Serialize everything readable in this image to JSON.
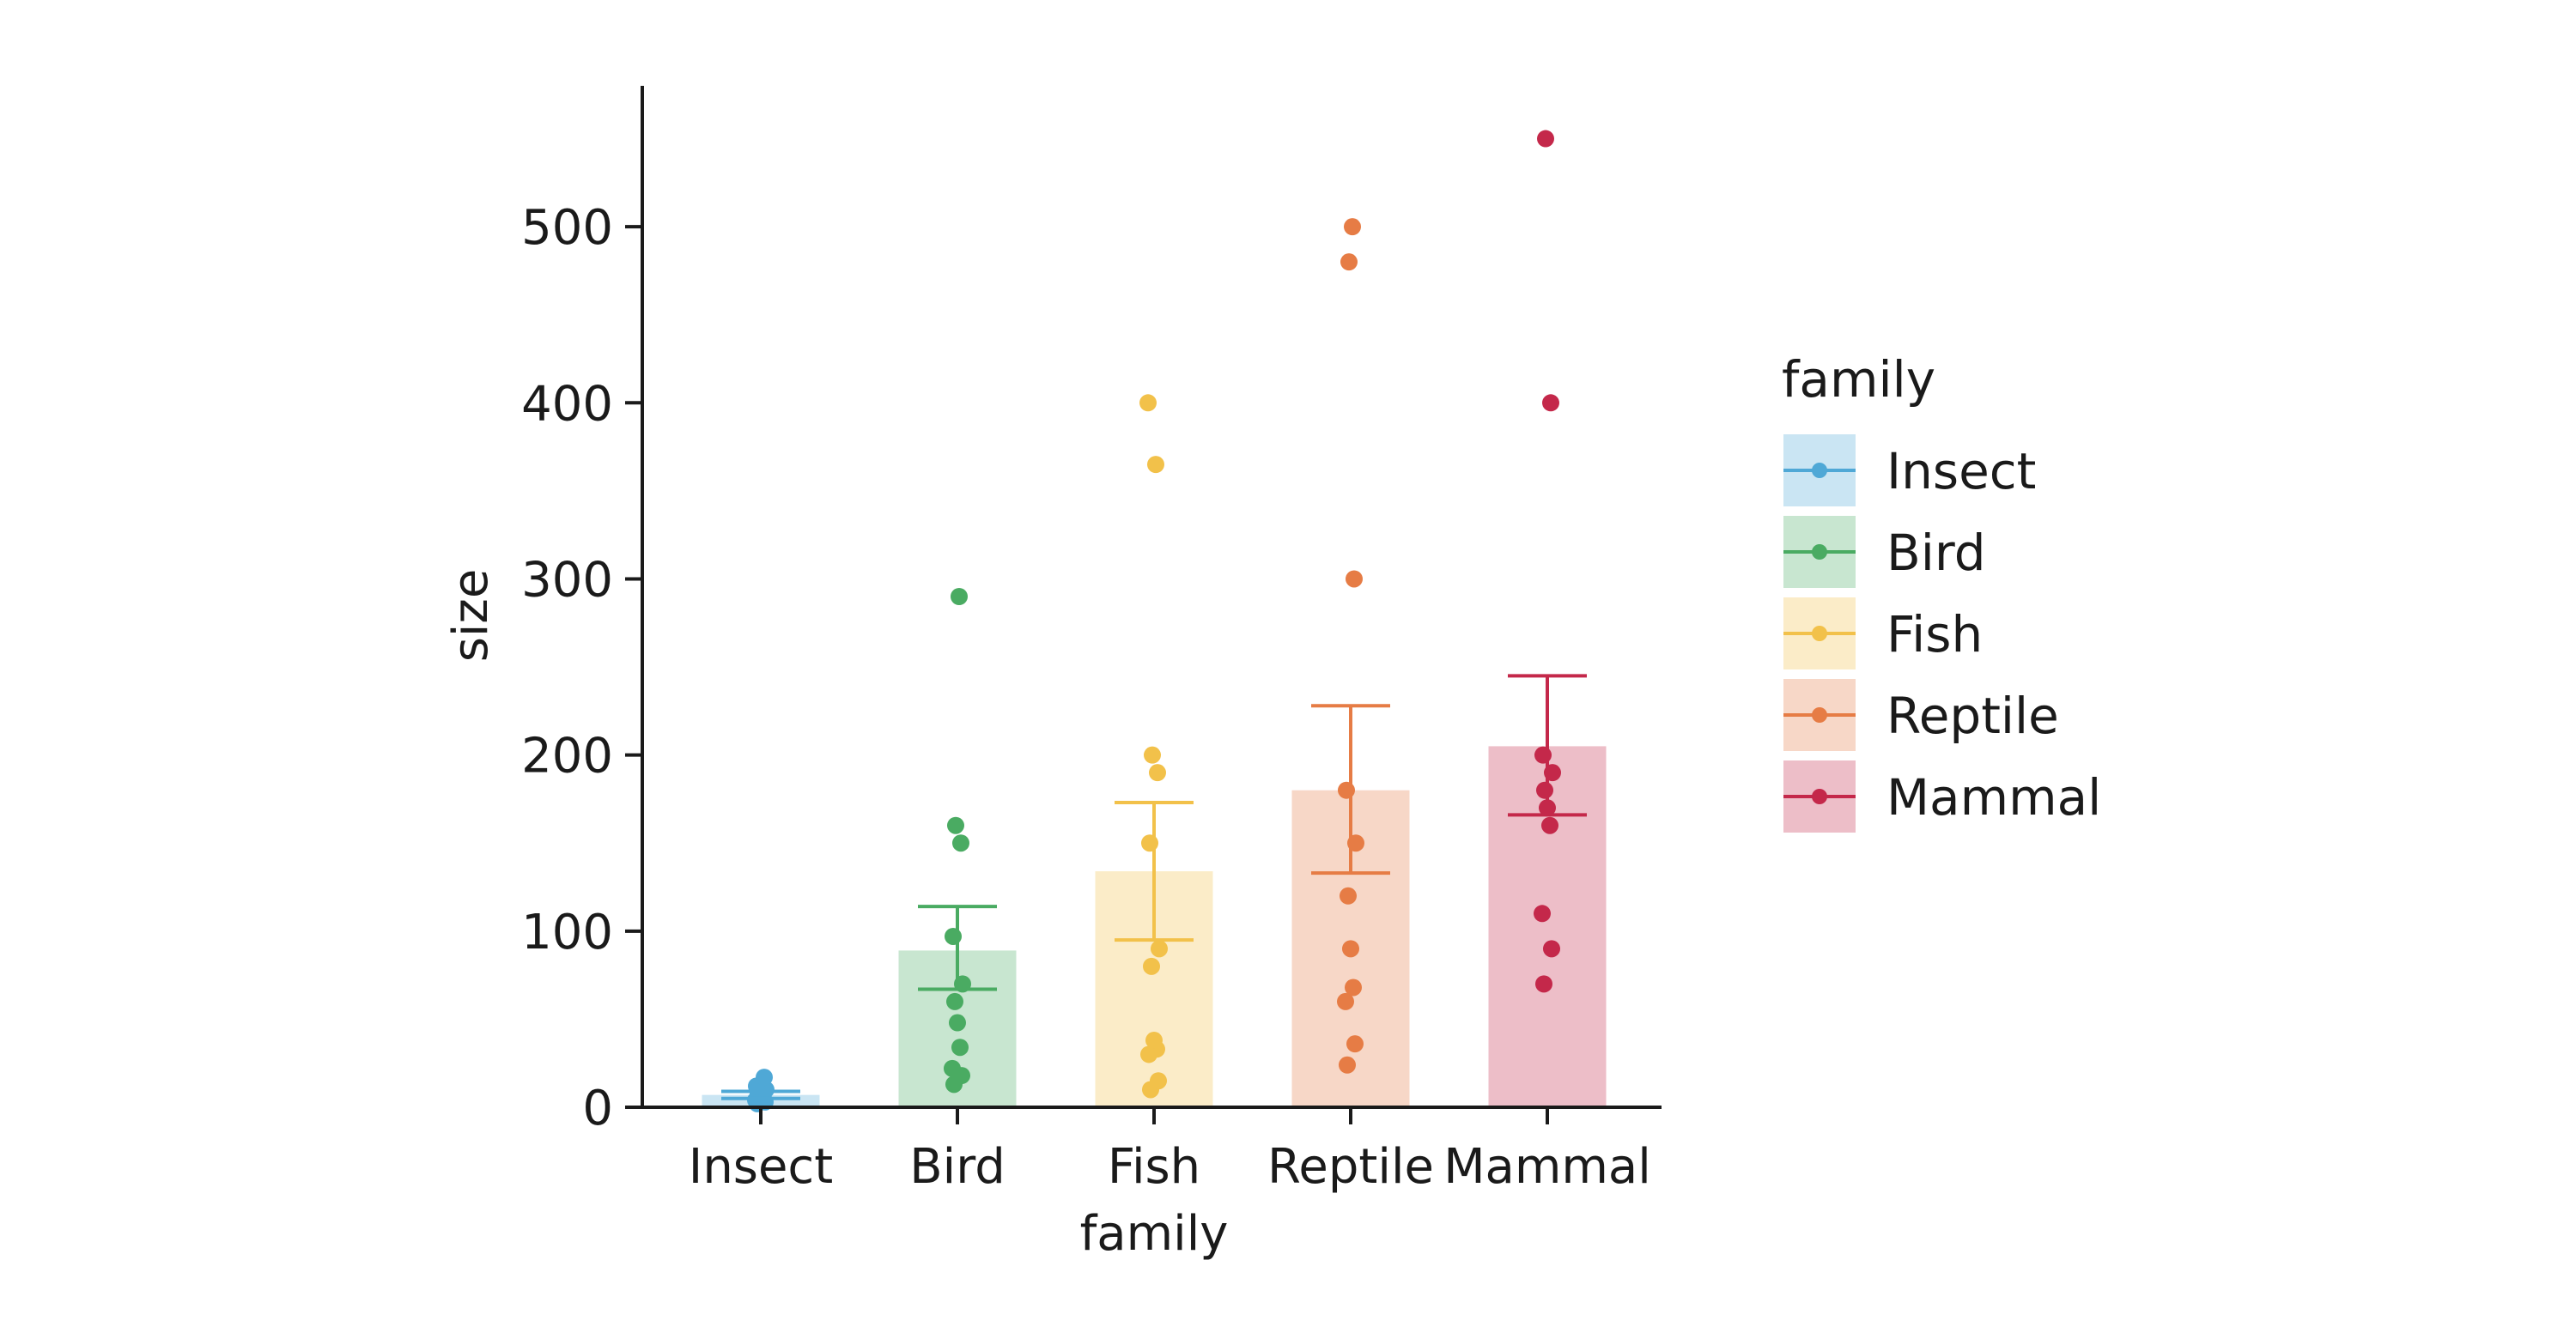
{
  "chart_data": {
    "type": "bar",
    "xlabel": "family",
    "ylabel": "size",
    "ylim": [
      0,
      580
    ],
    "yticks": [
      0,
      100,
      200,
      300,
      400,
      500
    ],
    "grid": false,
    "legend": {
      "title": "family",
      "placement": "right"
    },
    "categories": [
      "Insect",
      "Bird",
      "Fish",
      "Reptile",
      "Mammal"
    ],
    "colors": [
      "#4fa8d6",
      "#4aab62",
      "#f2c14a",
      "#e67c45",
      "#c4284a"
    ],
    "means": [
      7,
      89,
      134,
      180,
      205
    ],
    "error_bars": [
      [
        5,
        9
      ],
      [
        67,
        114
      ],
      [
        95,
        173
      ],
      [
        133,
        228
      ],
      [
        166,
        245
      ]
    ],
    "points": [
      [
        2,
        3,
        4,
        5,
        6,
        8,
        10,
        12,
        17
      ],
      [
        13,
        18,
        22,
        34,
        48,
        60,
        70,
        97,
        150,
        160,
        290
      ],
      [
        10,
        15,
        30,
        33,
        38,
        80,
        90,
        150,
        190,
        200,
        365,
        400
      ],
      [
        24,
        36,
        60,
        68,
        90,
        120,
        150,
        180,
        300,
        480,
        500
      ],
      [
        70,
        90,
        110,
        160,
        170,
        180,
        190,
        200,
        400,
        550
      ]
    ]
  }
}
